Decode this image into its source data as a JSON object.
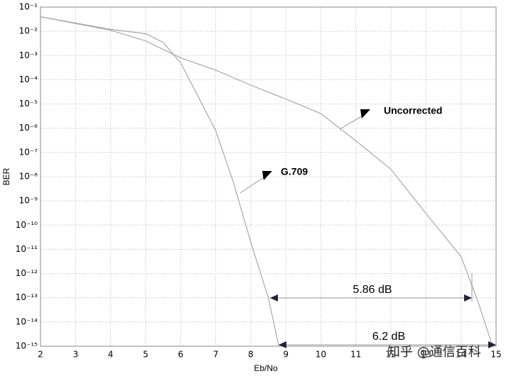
{
  "chart_data": {
    "type": "line",
    "xlabel": "Eb/No",
    "ylabel": "BER",
    "log_y": true,
    "grid": true,
    "xlim": [
      2,
      15
    ],
    "ylim": [
      1e-15,
      0.1
    ],
    "xticks": [
      2,
      3,
      4,
      5,
      6,
      7,
      8,
      9,
      10,
      11,
      12,
      13,
      14,
      15
    ],
    "yticks": [
      {
        "value": 0.1,
        "label": "10⁻¹"
      },
      {
        "value": 0.01,
        "label": "10⁻²"
      },
      {
        "value": 0.001,
        "label": "10⁻³"
      },
      {
        "value": 0.0001,
        "label": "10⁻⁴"
      },
      {
        "value": 1e-05,
        "label": "10⁻⁵"
      },
      {
        "value": 1e-06,
        "label": "10⁻⁶"
      },
      {
        "value": 1e-07,
        "label": "10⁻⁷"
      },
      {
        "value": 1e-08,
        "label": "10⁻⁸"
      },
      {
        "value": 1e-09,
        "label": "10⁻⁹"
      },
      {
        "value": 1e-10,
        "label": "10⁻¹⁰"
      },
      {
        "value": 1e-11,
        "label": "10⁻¹¹"
      },
      {
        "value": 1e-12,
        "label": "10⁻¹²"
      },
      {
        "value": 1e-13,
        "label": "10⁻¹³"
      },
      {
        "value": 1e-14,
        "label": "10⁻¹⁴"
      },
      {
        "value": 1e-15,
        "label": "10⁻¹⁵"
      }
    ],
    "series": [
      {
        "name": "Uncorrected",
        "color": "#a8a8a8",
        "x": [
          2,
          3,
          4,
          5,
          6,
          7,
          8,
          9,
          10,
          11,
          12,
          13,
          14,
          14.5,
          14.9
        ],
        "values": [
          0.04,
          0.021,
          0.011,
          0.004,
          0.0008,
          0.00025,
          6e-05,
          1.6e-05,
          4e-06,
          3e-07,
          2e-08,
          3e-10,
          5e-12,
          6e-14,
          1e-15
        ]
      },
      {
        "name": "G.709",
        "color": "#a8a8a8",
        "x": [
          2,
          3,
          4,
          5,
          5.5,
          6,
          6.5,
          7,
          7.5,
          8,
          8.5,
          8.8
        ],
        "values": [
          0.04,
          0.022,
          0.012,
          0.008,
          0.0035,
          0.0005,
          2e-05,
          8e-07,
          6e-09,
          2e-11,
          1e-13,
          1e-15
        ]
      }
    ],
    "annotations": [
      "5.86 dB",
      "6.2 dB"
    ],
    "watermark": "知乎 @通信百科"
  }
}
